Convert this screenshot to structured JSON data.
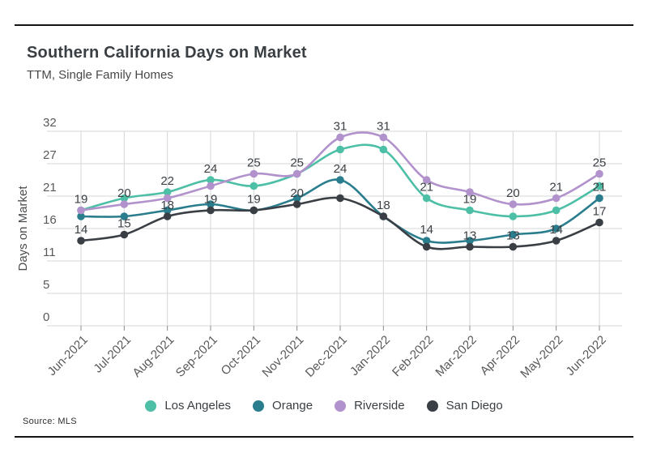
{
  "page": {
    "title": "Southern California Days on Market",
    "subtitle": "TTM, Single Family Homes",
    "source": "Source:  MLS"
  },
  "chart_data": {
    "type": "line",
    "title": "Southern California Days on Market",
    "subtitle": "TTM, Single Family Homes",
    "xlabel": "",
    "ylabel": "Days on Market",
    "ylim": [
      0,
      32
    ],
    "grid": true,
    "legend_position": "bottom",
    "y_tick_labels": [
      "32",
      "27",
      "21",
      "16",
      "11",
      "5",
      "0"
    ],
    "categories": [
      "Jun-2021",
      "Jul-2021",
      "Aug-2021",
      "Sep-2021",
      "Oct-2021",
      "Nov-2021",
      "Dec-2021",
      "Jan-2022",
      "Feb-2022",
      "Mar-2022",
      "Apr-2022",
      "May-2022",
      "Jun-2022"
    ],
    "series": [
      {
        "name": "Los Angeles",
        "color": "#4DBFA6",
        "values": [
          19,
          21,
          22,
          24,
          23,
          25,
          29,
          29,
          21,
          19,
          18,
          19,
          23
        ],
        "point_labels": [
          null,
          null,
          "22",
          "24",
          null,
          null,
          null,
          null,
          "21",
          "19",
          null,
          null,
          null
        ]
      },
      {
        "name": "Orange",
        "color": "#2A7D8C",
        "values": [
          18,
          18,
          19,
          20,
          19,
          21,
          24,
          18,
          14,
          14,
          15,
          16,
          21
        ],
        "point_labels": [
          null,
          null,
          null,
          null,
          null,
          null,
          "24",
          null,
          "14",
          null,
          null,
          null,
          "21"
        ]
      },
      {
        "name": "Riverside",
        "color": "#B292CC",
        "values": [
          19,
          20,
          21,
          23,
          25,
          25,
          31,
          31,
          24,
          22,
          20,
          21,
          25
        ],
        "point_labels": [
          "19",
          "20",
          null,
          null,
          "25",
          "25",
          "31",
          "31",
          null,
          null,
          "20",
          "21",
          "25"
        ]
      },
      {
        "name": "San Diego",
        "color": "#3A3F45",
        "values": [
          14,
          15,
          18,
          19,
          19,
          20,
          21,
          18,
          13,
          13,
          13,
          14,
          17
        ],
        "point_labels": [
          "14",
          "15",
          "18",
          "19",
          "19",
          "20",
          null,
          "18",
          null,
          "13",
          "13",
          "14",
          "17"
        ]
      }
    ],
    "style": {
      "grid_color": "#d7d7d7",
      "tick_text_color": "#58595b",
      "point_label_color": "#3b4045"
    }
  }
}
